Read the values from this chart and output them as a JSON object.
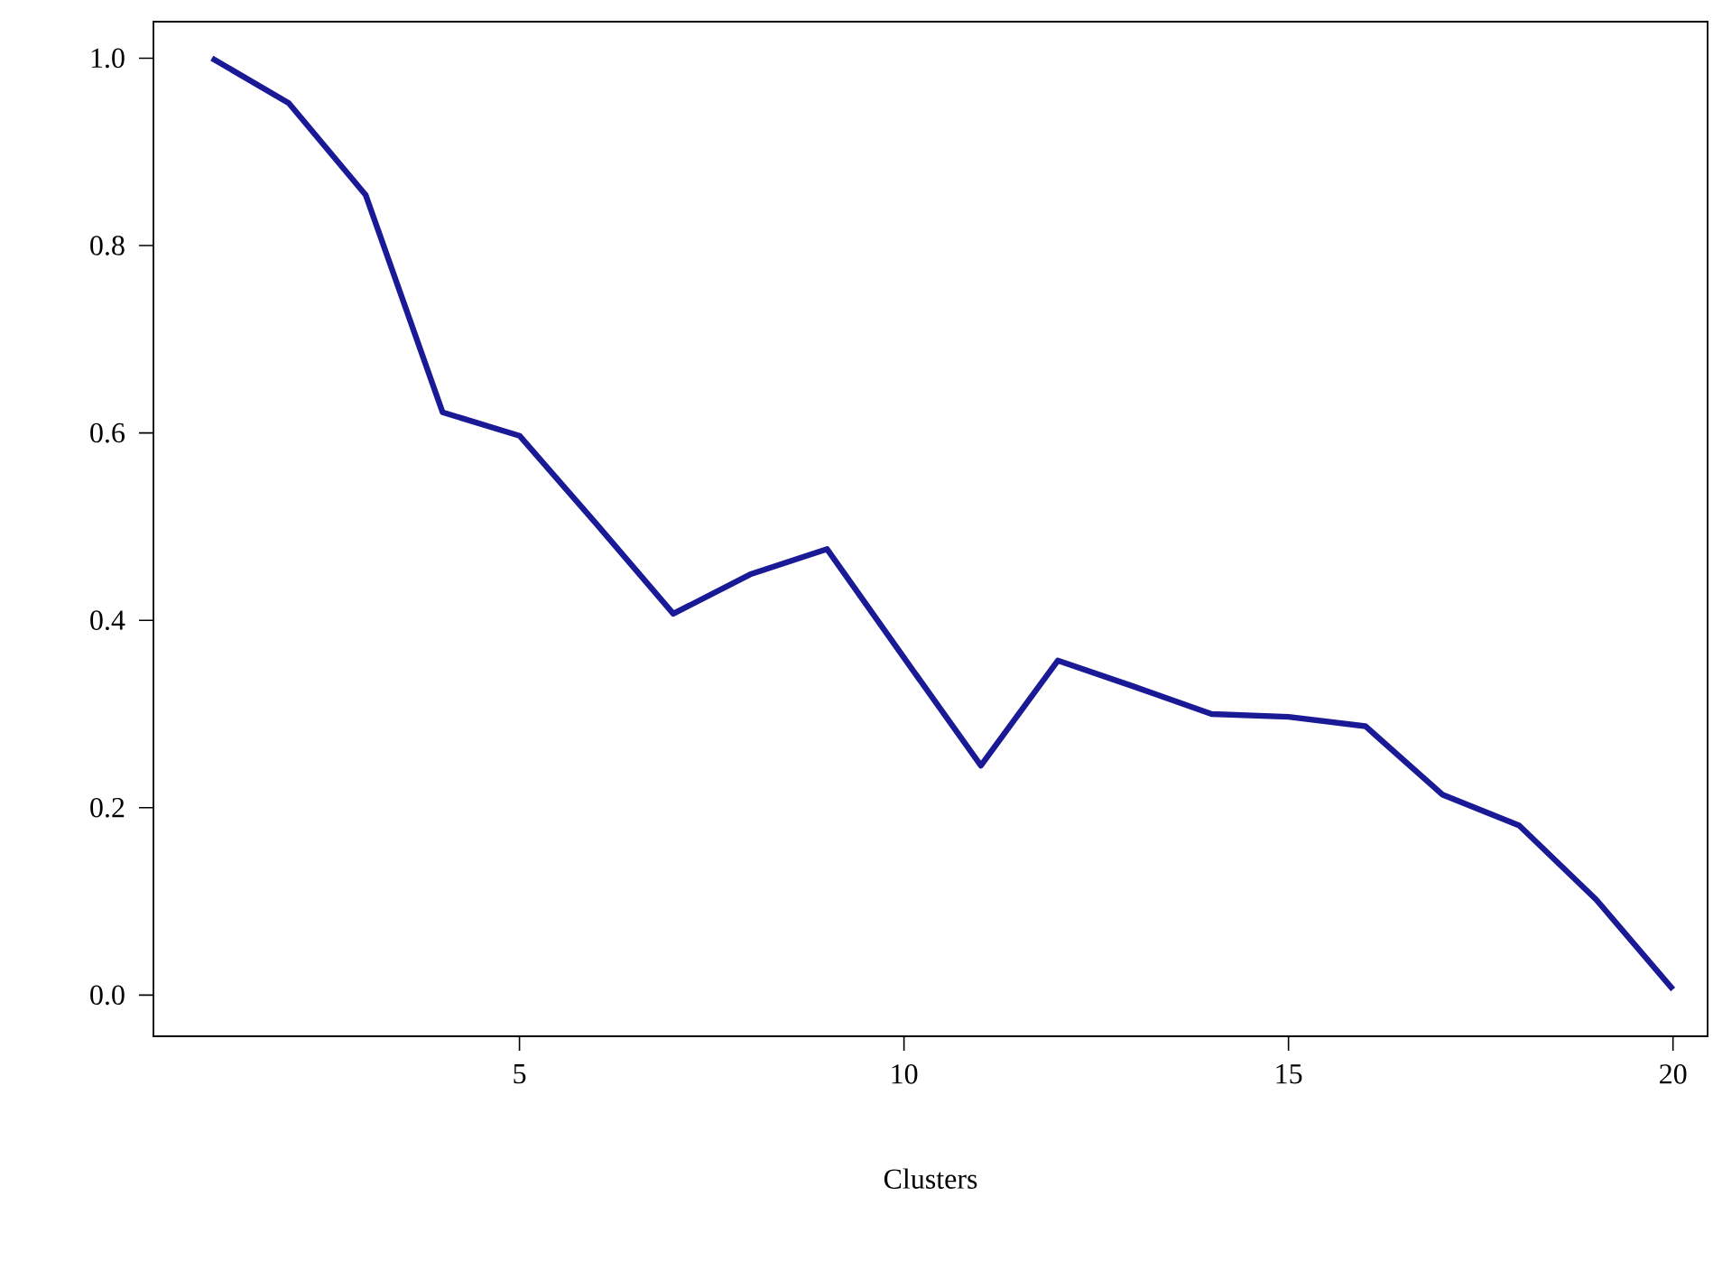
{
  "chart_data": {
    "type": "line",
    "xlabel": "Clusters",
    "x": [
      1,
      2,
      3,
      4,
      5,
      6,
      7,
      8,
      9,
      10,
      11,
      12,
      13,
      14,
      15,
      16,
      17,
      18,
      19,
      20
    ],
    "series": [
      {
        "color": "#1a1a96",
        "values": [
          1.0,
          0.952,
          0.854,
          0.622,
          0.597,
          0.503,
          0.407,
          0.449,
          0.476,
          0.36,
          0.245,
          0.357,
          0.329,
          0.3,
          0.297,
          0.287,
          0.214,
          0.181,
          0.102,
          0.006
        ]
      }
    ],
    "xlim": [
      0.24,
      20.45
    ],
    "ylim": [
      -0.044,
      1.039
    ],
    "xticks": [
      5,
      10,
      15,
      20
    ],
    "yticks": [
      {
        "value": 0,
        "label": "0.0"
      },
      {
        "value": 0.2,
        "label": "0.2"
      },
      {
        "value": 0.4,
        "label": "0.4"
      },
      {
        "value": 0.6,
        "label": "0.6"
      },
      {
        "value": 0.8,
        "label": "0.8"
      },
      {
        "value": 1.0,
        "label": "1.0"
      }
    ],
    "grid": false,
    "marker": "none",
    "line_style": "solid"
  }
}
